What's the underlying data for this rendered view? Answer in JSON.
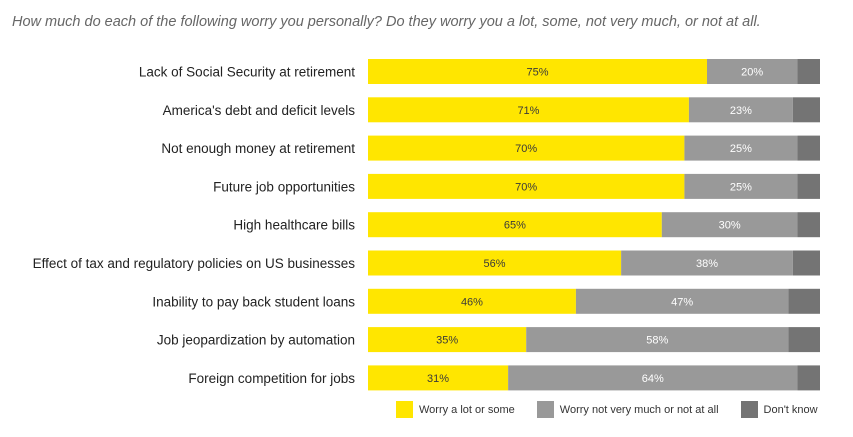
{
  "header": {
    "subtitle": "How much do each of the following worry you personally? Do they worry you a lot, some, not very much, or not at all."
  },
  "colors": {
    "worry": "#FFE600",
    "not_worry": "#999999",
    "dont_know": "#747474"
  },
  "chart_data": {
    "type": "bar",
    "orientation": "horizontal",
    "stacked": true,
    "subtitle": "How much do each of the following worry you personally? Do they worry you a lot, some, not very much, or not at all.",
    "xlim": [
      0,
      100
    ],
    "grid": false,
    "legend_position": "bottom",
    "categories": [
      "Lack of Social Security at retirement",
      "America's debt and deficit levels",
      "Not enough money at retirement",
      "Future job opportunities",
      "High healthcare bills",
      "Effect of tax and regulatory policies on US businesses",
      "Inability to pay back student loans",
      "Job jeopardization by automation",
      "Foreign competition for jobs"
    ],
    "series": [
      {
        "name": "Worry a lot or some",
        "color": "#FFE600",
        "values": [
          75,
          71,
          70,
          70,
          65,
          56,
          46,
          35,
          31
        ],
        "labels": [
          "75%",
          "71%",
          "70%",
          "70%",
          "65%",
          "56%",
          "46%",
          "35%",
          "31%"
        ]
      },
      {
        "name": "Worry not very much or not at all",
        "color": "#999999",
        "values": [
          20,
          23,
          25,
          25,
          30,
          38,
          47,
          58,
          64
        ],
        "labels": [
          "20%",
          "23%",
          "25%",
          "25%",
          "30%",
          "38%",
          "47%",
          "58%",
          "64%"
        ]
      },
      {
        "name": "Don't know",
        "color": "#747474",
        "values": [
          5,
          6,
          5,
          5,
          5,
          6,
          7,
          7,
          5
        ]
      }
    ]
  },
  "legend": {
    "items": [
      {
        "label": "Worry a lot or some",
        "color": "#FFE600"
      },
      {
        "label": "Worry not very much or not at all",
        "color": "#999999"
      },
      {
        "label": "Don't know",
        "color": "#747474"
      }
    ]
  }
}
